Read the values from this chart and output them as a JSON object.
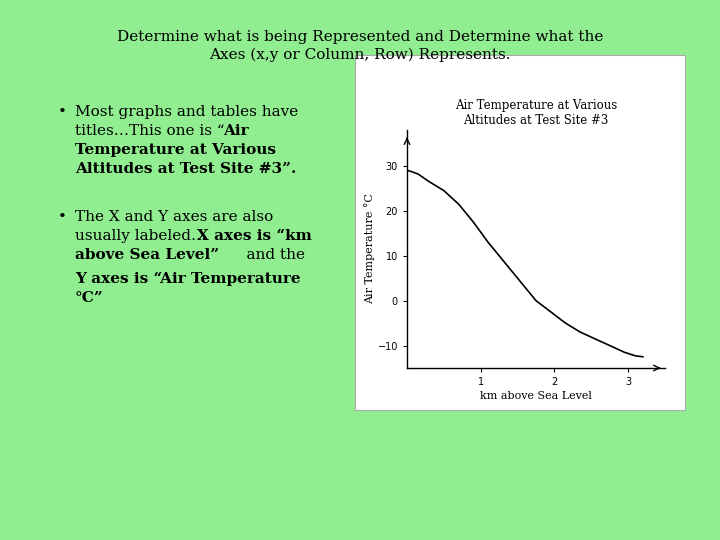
{
  "bg_color": "#90EE90",
  "title_line1": "Determine what is being Represented and Determine what the",
  "title_line2": "Axes (x,y or Column, Row) Represents.",
  "graph_title_line1": "Air Temperature at Various",
  "graph_title_line2": "Altitudes at Test Site #3",
  "graph_xlabel": "km above Sea Level",
  "graph_ylabel": "Air Temperature °C",
  "curve_x": [
    0,
    0.05,
    0.15,
    0.3,
    0.5,
    0.7,
    0.9,
    1.1,
    1.3,
    1.55,
    1.75,
    1.95,
    2.15,
    2.35,
    2.55,
    2.75,
    2.95,
    3.1,
    3.2
  ],
  "curve_y": [
    29,
    28.8,
    28.2,
    26.5,
    24.5,
    21.5,
    17.5,
    13,
    9,
    4,
    0,
    -2.5,
    -5,
    -7,
    -8.5,
    -10,
    -11.5,
    -12.3,
    -12.5
  ],
  "xlim": [
    0,
    3.5
  ],
  "ylim": [
    -15,
    38
  ],
  "yticks": [
    -10,
    0,
    10,
    20,
    30
  ],
  "xticks": [
    1,
    2,
    3
  ],
  "font_size_title": 11,
  "font_size_bullet": 11,
  "font_size_graph": 8
}
